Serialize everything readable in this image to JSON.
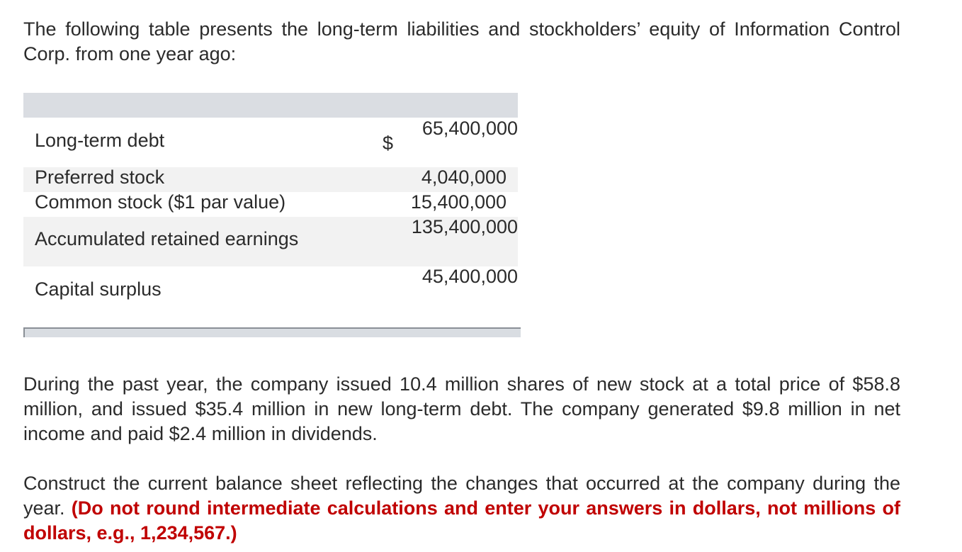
{
  "intro": "The following table presents the long-term liabilities and stockholders’ equity of Information Control Corp. from one year ago:",
  "table": {
    "currency_symbol": "$",
    "rows": [
      {
        "label": "Long-term debt",
        "value": "65,400,000"
      },
      {
        "label": "Preferred stock",
        "value": "4,040,000"
      },
      {
        "label": "Common stock ($1 par value)",
        "value": "15,400,000"
      },
      {
        "label": "Accumulated retained earnings",
        "value": "135,400,000"
      },
      {
        "label": "Capital surplus",
        "value": "45,400,000"
      }
    ]
  },
  "paragraph2": "During the past year, the company issued 10.4 million shares of new stock at a total price of $58.8 million, and issued $35.4 million in new long-term debt. The company generated $9.8 million in net income and paid $2.4 million in dividends.",
  "paragraph3": {
    "text": "Construct the current balance sheet reflecting the changes that occurred at the company during the year.",
    "emphasis": "(Do not round intermediate calculations and enter your answers in dollars, not millions of dollars, e.g., 1,234,567.)"
  },
  "colors": {
    "emphasis": "#c00000",
    "header_band": "#dadde2",
    "row_band": "#f2f2f2"
  }
}
